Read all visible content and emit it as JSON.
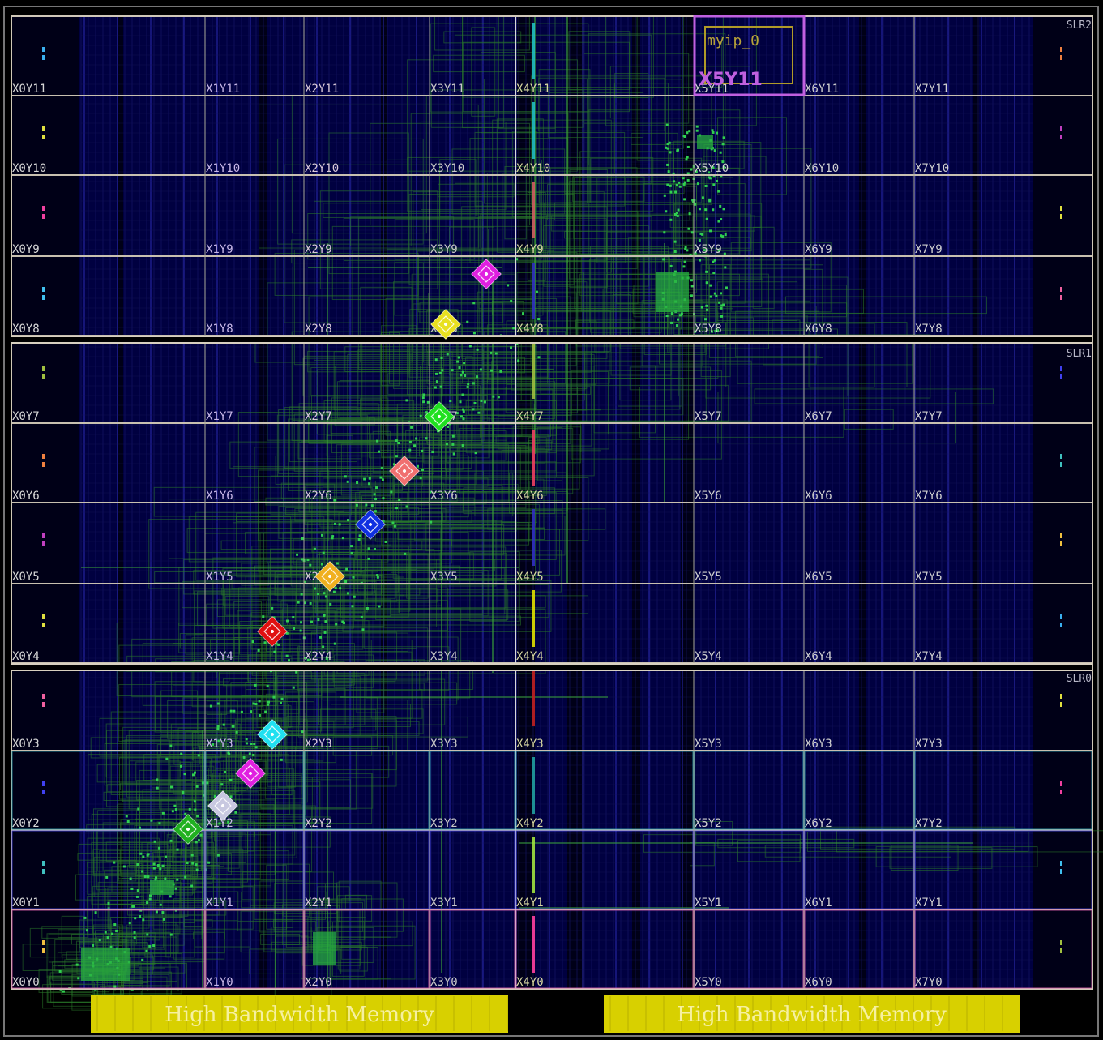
{
  "device_view": {
    "slr_labels": [
      "SLR2",
      "SLR1",
      "SLR0"
    ],
    "clock_regions": [
      [
        "X0Y11",
        "X1Y11",
        "X2Y11",
        "X3Y11",
        "X4Y11",
        "X5Y11",
        "X6Y11",
        "X7Y11"
      ],
      [
        "X0Y10",
        "X1Y10",
        "X2Y10",
        "X3Y10",
        "X4Y10",
        "X5Y10",
        "X6Y10",
        "X7Y10"
      ],
      [
        "X0Y9",
        "X1Y9",
        "X2Y9",
        "X3Y9",
        "X4Y9",
        "X5Y9",
        "X6Y9",
        "X7Y9"
      ],
      [
        "X0Y8",
        "X1Y8",
        "X2Y8",
        "X3Y8",
        "X4Y8",
        "X5Y8",
        "X6Y8",
        "X7Y8"
      ],
      [
        "X0Y7",
        "X1Y7",
        "X2Y7",
        "X3Y7",
        "X4Y7",
        "X5Y7",
        "X6Y7",
        "X7Y7"
      ],
      [
        "X0Y6",
        "X1Y6",
        "X2Y6",
        "X3Y6",
        "X4Y6",
        "X5Y6",
        "X6Y6",
        "X7Y6"
      ],
      [
        "X0Y5",
        "X1Y5",
        "X2Y5",
        "X3Y5",
        "X4Y5",
        "X5Y5",
        "X6Y5",
        "X7Y5"
      ],
      [
        "X0Y4",
        "X1Y4",
        "X2Y4",
        "X3Y4",
        "X4Y4",
        "X5Y4",
        "X6Y4",
        "X7Y4"
      ],
      [
        "X0Y3",
        "X1Y3",
        "X2Y3",
        "X3Y3",
        "X4Y3",
        "X5Y3",
        "X6Y3",
        "X7Y3"
      ],
      [
        "X0Y2",
        "X1Y2",
        "X2Y2",
        "X3Y2",
        "X4Y2",
        "X5Y2",
        "X6Y2",
        "X7Y2"
      ],
      [
        "X0Y1",
        "X1Y1",
        "X2Y1",
        "X3Y1",
        "X4Y1",
        "X5Y1",
        "X6Y1",
        "X7Y1"
      ],
      [
        "X0Y0",
        "X1Y0",
        "X2Y0",
        "X3Y0",
        "X4Y0",
        "X5Y0",
        "X6Y0",
        "X7Y0"
      ]
    ],
    "pblock": {
      "name": "myip_0",
      "region": "X5Y11"
    },
    "hbm_labels": [
      "High Bandwidth Memory",
      "High Bandwidth Memory"
    ],
    "cell_markers": [
      "#e020e0",
      "#e8e020",
      "#20e020",
      "#f07070",
      "#1030e0",
      "#f0b020",
      "#e01010",
      "#20e0f0",
      "#e020e0",
      "#c8c8e0",
      "#20b020"
    ],
    "colors": {
      "background": "#000000",
      "fabric": "#000040",
      "region_border": "#c8c0b0",
      "routing": "#2a7a2a",
      "hbm_fill": "#d8d000",
      "pblock": "#c060e0"
    }
  }
}
